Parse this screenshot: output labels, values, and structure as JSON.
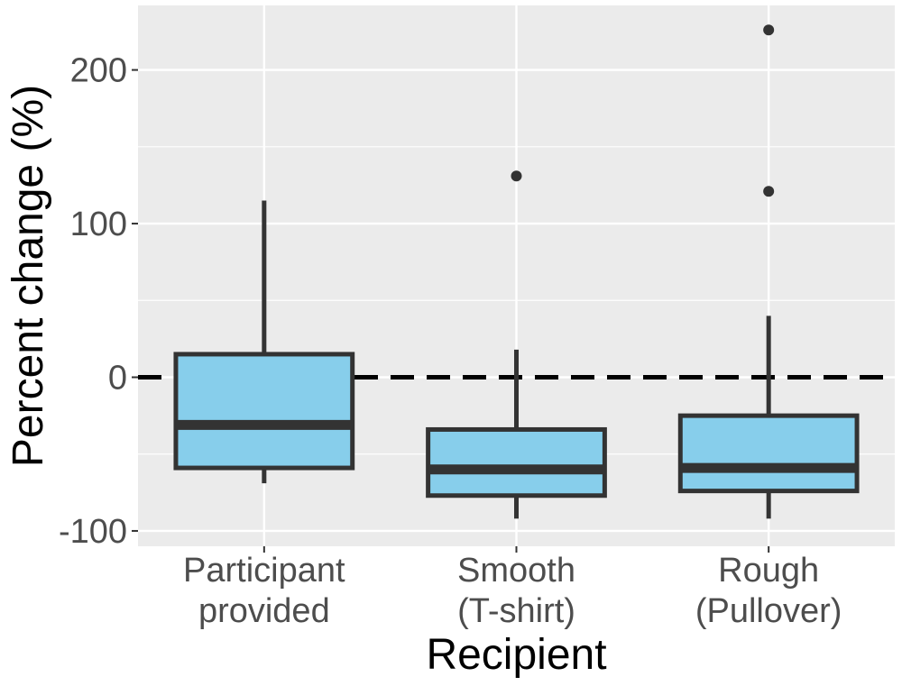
{
  "chart_data": {
    "type": "boxplot",
    "title": "",
    "xlabel": "Recipient",
    "ylabel": "Percent change (%)",
    "ylim": [
      -110,
      242
    ],
    "yticks": [
      -100,
      0,
      100,
      200
    ],
    "ytick_labels": [
      "-100",
      "0",
      "100",
      "200"
    ],
    "categories": [
      {
        "lines": [
          "Participant",
          "provided"
        ]
      },
      {
        "lines": [
          "Smooth",
          "(T-shirt)"
        ]
      },
      {
        "lines": [
          "Rough",
          "(Pullover)"
        ]
      }
    ],
    "boxes": [
      {
        "whisker_low": -69,
        "q1": -59,
        "median": -31,
        "q3": 15,
        "whisker_high": 115,
        "outliers": []
      },
      {
        "whisker_low": -92,
        "q1": -77,
        "median": -60,
        "q3": -34,
        "whisker_high": 18,
        "outliers": [
          131
        ]
      },
      {
        "whisker_low": -92,
        "q1": -74,
        "median": -59,
        "q3": -25,
        "whisker_high": 40,
        "outliers": [
          121,
          226
        ]
      }
    ],
    "reference_line": {
      "y": 0,
      "style": "dashed"
    },
    "grid": true
  },
  "colors": {
    "panel_bg": "#ebebeb",
    "grid": "#ffffff",
    "box_fill": "#87ceeb",
    "box_stroke": "#333333",
    "ref_line": "#000000",
    "tick_text": "#4d4d4d"
  }
}
